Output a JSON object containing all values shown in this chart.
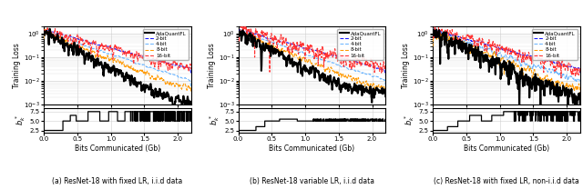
{
  "subplots": [
    {
      "title": "(a) ResNet-18 with fixed LR, i.i.d data",
      "xlim": [
        0.0,
        2.2
      ],
      "ylim_loss": [
        0.001,
        2.0
      ],
      "ylim_bits": [
        2.0,
        8.5
      ],
      "yticks_bits": [
        2.5,
        5.0,
        7.5
      ],
      "ylabel_bits": "$b^*_k$"
    },
    {
      "title": "(b) ResNet-18 variable LR, i.i.d data",
      "xlim": [
        0.0,
        2.2
      ],
      "ylim_loss": [
        0.001,
        2.0
      ],
      "ylim_bits": [
        2.0,
        8.5
      ],
      "yticks_bits": [
        2.5,
        5.0,
        7.5
      ],
      "ylabel_bits": "$b^*_k$"
    },
    {
      "title": "(c) ResNet-18 with fixed LR, non-i.i.d data",
      "xlim": [
        0.0,
        2.2
      ],
      "ylim_loss": [
        0.001,
        2.0
      ],
      "ylim_bits": [
        2.0,
        8.5
      ],
      "yticks_bits": [
        2.5,
        5.0,
        7.5
      ],
      "ylabel_bits": "$b^*_k$"
    }
  ],
  "colors": {
    "adaquant": "#000000",
    "2bit": "#1a1aff",
    "4bit": "#6db6ff",
    "8bit": "#ff9900",
    "16bit": "#ff3333"
  },
  "legend_labels": [
    "AdaQuantFL",
    "2-bit",
    "4-bit",
    "8-bit",
    "16-bit"
  ],
  "xlabel": "Bits Communicated (Gb)",
  "ylabel_loss": "Training Loss",
  "bg_color": "#ffffff",
  "grid_color": "#d0d0d0"
}
